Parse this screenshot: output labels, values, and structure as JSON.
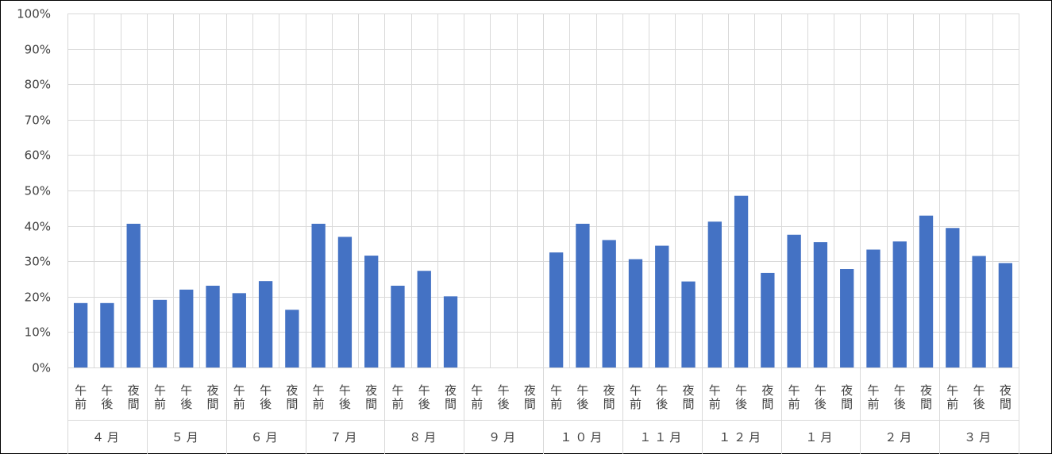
{
  "chart_data": {
    "type": "bar",
    "title": "",
    "xlabel": "",
    "ylabel": "",
    "ylim": [
      0,
      100
    ],
    "y_ticks": [
      0,
      10,
      20,
      30,
      40,
      50,
      60,
      70,
      80,
      90,
      100
    ],
    "y_tick_labels": [
      "0%",
      "10%",
      "20%",
      "30%",
      "40%",
      "50%",
      "60%",
      "70%",
      "80%",
      "90%",
      "100%"
    ],
    "grid": true,
    "bar_color": "#4472C4",
    "grid_color": "#D9D9D9",
    "groups": [
      {
        "label": "４月",
        "categories": [
          "午前",
          "午後",
          "夜間"
        ],
        "values": [
          18.2,
          18.2,
          40.6
        ]
      },
      {
        "label": "５月",
        "categories": [
          "午前",
          "午後",
          "夜間"
        ],
        "values": [
          19.1,
          22.0,
          23.1
        ]
      },
      {
        "label": "６月",
        "categories": [
          "午前",
          "午後",
          "夜間"
        ],
        "values": [
          21.0,
          24.4,
          16.3
        ]
      },
      {
        "label": "７月",
        "categories": [
          "午前",
          "午後",
          "夜間"
        ],
        "values": [
          40.6,
          36.9,
          31.6
        ]
      },
      {
        "label": "８月",
        "categories": [
          "午前",
          "午後",
          "夜間"
        ],
        "values": [
          23.1,
          27.3,
          20.1
        ]
      },
      {
        "label": "９月",
        "categories": [
          "午前",
          "午後",
          "夜間"
        ],
        "values": [
          null,
          null,
          null
        ]
      },
      {
        "label": "１０月",
        "categories": [
          "午前",
          "午後",
          "夜間"
        ],
        "values": [
          32.5,
          40.6,
          36.0
        ]
      },
      {
        "label": "１１月",
        "categories": [
          "午前",
          "午後",
          "夜間"
        ],
        "values": [
          30.6,
          34.4,
          24.3
        ]
      },
      {
        "label": "１２月",
        "categories": [
          "午前",
          "午後",
          "夜間"
        ],
        "values": [
          41.2,
          48.5,
          26.7
        ]
      },
      {
        "label": "１月",
        "categories": [
          "午前",
          "午後",
          "夜間"
        ],
        "values": [
          37.5,
          35.4,
          27.8
        ]
      },
      {
        "label": "２月",
        "categories": [
          "午前",
          "午後",
          "夜間"
        ],
        "values": [
          33.3,
          35.6,
          42.9
        ]
      },
      {
        "label": "３月",
        "categories": [
          "午前",
          "午後",
          "夜間"
        ],
        "values": [
          39.4,
          31.5,
          29.5
        ]
      }
    ]
  }
}
